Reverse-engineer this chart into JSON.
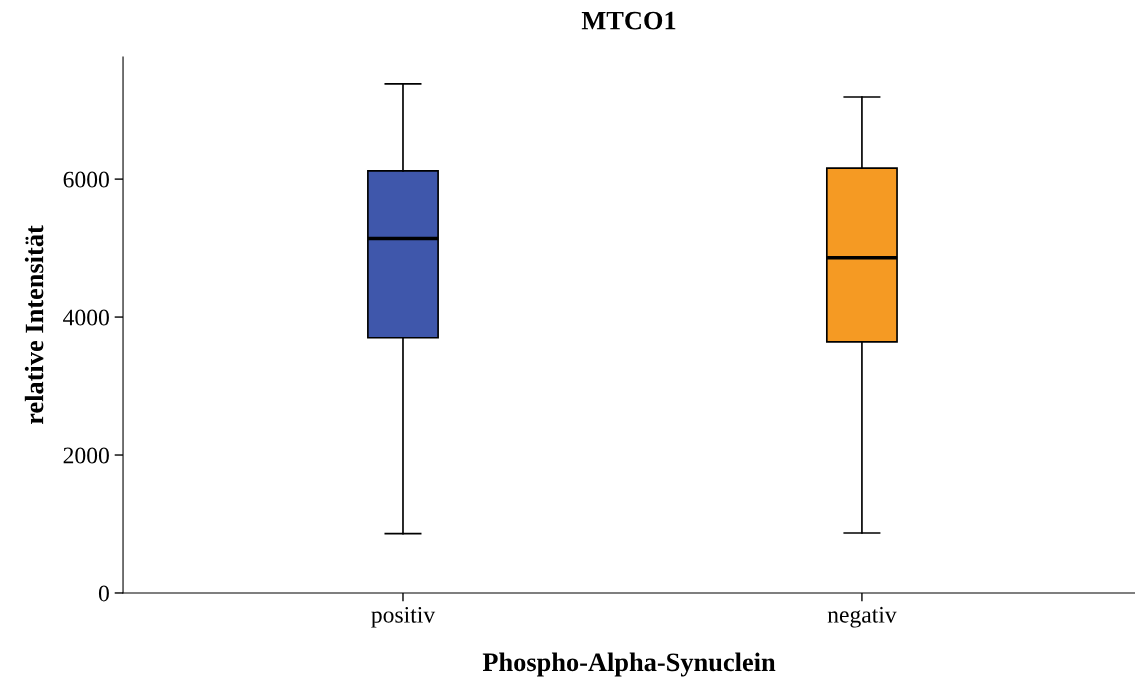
{
  "chart_data": {
    "type": "box",
    "title": "MTCO1",
    "xlabel": "Phospho-Alpha-Synuclein",
    "ylabel": "relative Intensität",
    "categories": [
      "positiv",
      "negativ"
    ],
    "boxes": [
      {
        "low": 860,
        "q1": 3700,
        "median": 5140,
        "q3": 6120,
        "high": 7380
      },
      {
        "low": 870,
        "q1": 3640,
        "median": 4860,
        "q3": 6160,
        "high": 7190
      }
    ],
    "colors": [
      "#3f57ab",
      "#f59a23"
    ],
    "ylim": [
      0,
      7770
    ],
    "yticks": [
      0,
      2000,
      4000,
      6000
    ],
    "grid": false,
    "legend": false
  }
}
